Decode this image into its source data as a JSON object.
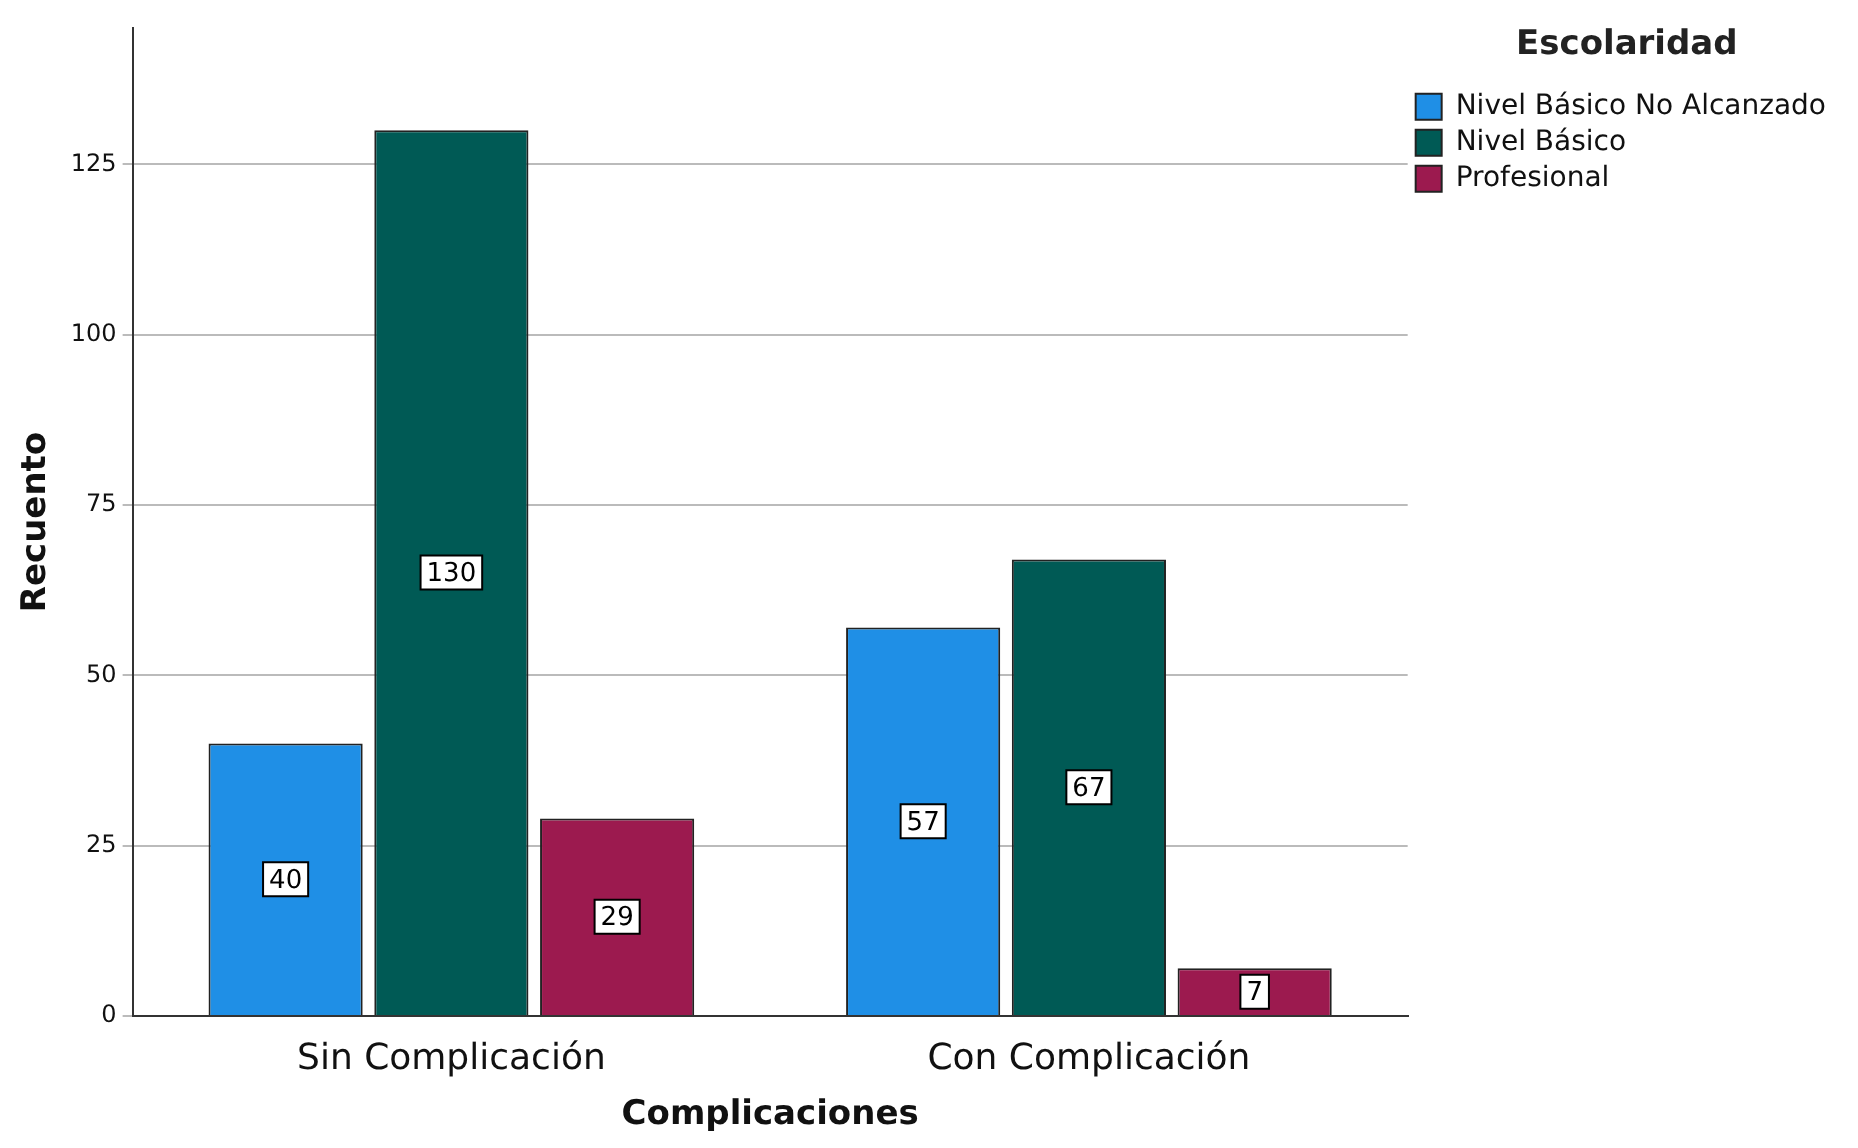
{
  "chart_data": {
    "type": "bar",
    "xlabel": "Complicaciones",
    "ylabel": "Recuento",
    "legend_title": "Escolaridad",
    "legend": "top right",
    "categories": [
      "Sin Complicación",
      "Con Complicación"
    ],
    "series": [
      {
        "name": "Nivel Básico No Alcanzado",
        "color": "#1f8fe6",
        "values": [
          40,
          57
        ]
      },
      {
        "name": "Nivel Básico",
        "color": "#005a55",
        "values": [
          130,
          67
        ]
      },
      {
        "name": "Profesional",
        "color": "#9c1a4f",
        "values": [
          29,
          7
        ]
      }
    ],
    "ylim": [
      0,
      145
    ],
    "yticks": [
      0,
      25,
      50,
      75,
      100,
      125
    ],
    "grid": "y",
    "data_labels": true
  }
}
